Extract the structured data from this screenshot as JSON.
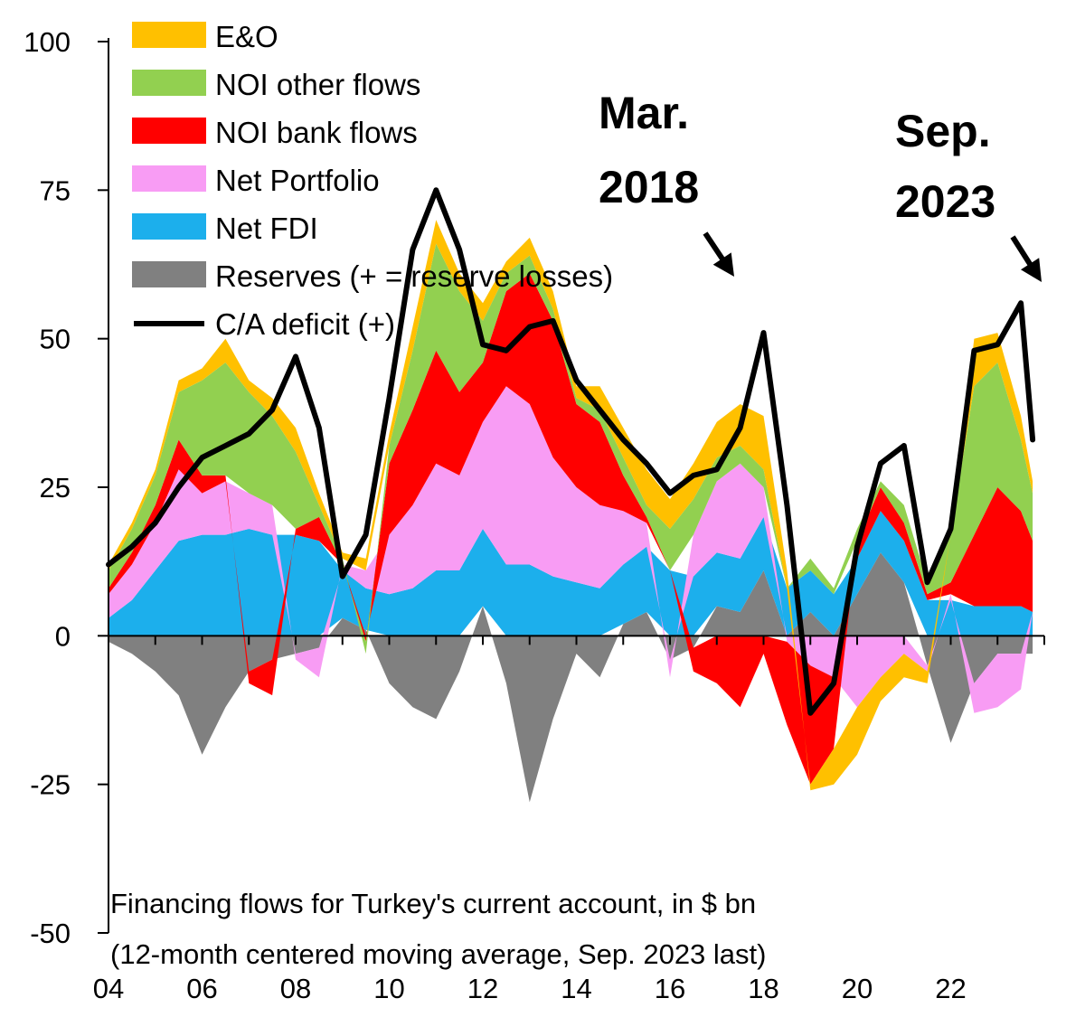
{
  "chart_data": {
    "type": "area",
    "stacked": true,
    "title": "",
    "caption": [
      "Financing flows for Turkey's current account, in $ bn",
      "(12-month centered moving average, Sep. 2023 last)"
    ],
    "xlabel": "",
    "ylabel": "",
    "x_range": [
      2004,
      2024
    ],
    "ylim": [
      -50,
      100
    ],
    "yticks": [
      "100",
      "75",
      "50",
      "25",
      "0",
      "-25",
      "-50"
    ],
    "ytick_values": [
      100,
      75,
      50,
      25,
      0,
      -25,
      -50
    ],
    "xticks": [
      "04",
      "06",
      "08",
      "10",
      "12",
      "14",
      "16",
      "18",
      "20",
      "22"
    ],
    "xtick_values": [
      2004,
      2006,
      2008,
      2010,
      2012,
      2014,
      2016,
      2018,
      2020,
      2022
    ],
    "legend_position": "top-left",
    "x": [
      2004.0,
      2004.5,
      2005.0,
      2005.5,
      2006.0,
      2006.5,
      2007.0,
      2007.5,
      2008.0,
      2008.5,
      2009.0,
      2009.5,
      2010.0,
      2010.5,
      2011.0,
      2011.5,
      2012.0,
      2012.5,
      2013.0,
      2013.5,
      2014.0,
      2014.5,
      2015.0,
      2015.5,
      2016.0,
      2016.5,
      2017.0,
      2017.5,
      2018.0,
      2018.5,
      2019.0,
      2019.5,
      2020.0,
      2020.5,
      2021.0,
      2021.5,
      2022.0,
      2022.5,
      2023.0,
      2023.5,
      2023.75
    ],
    "series": [
      {
        "name": "Reserves (+ = reserve losses)",
        "color": "#808080",
        "values": [
          -1,
          -3,
          -6,
          -10,
          -20,
          -12,
          -6,
          -4,
          -3,
          -2,
          3,
          1,
          -8,
          -12,
          -14,
          -6,
          5,
          -8,
          -28,
          -14,
          -3,
          -7,
          2,
          4,
          -4,
          -2,
          5,
          4,
          11,
          0,
          4,
          0,
          7,
          14,
          9,
          -5,
          -18,
          -8,
          -3,
          -3,
          -3
        ]
      },
      {
        "name": "Net FDI",
        "color": "#1CAFEC",
        "values": [
          3,
          6,
          11,
          16,
          17,
          17,
          18,
          17,
          17,
          16,
          8,
          7,
          7,
          8,
          11,
          11,
          13,
          12,
          12,
          10,
          9,
          8,
          10,
          11,
          11,
          10,
          9,
          9,
          9,
          8,
          7,
          7,
          6,
          7,
          7,
          6,
          6,
          5,
          5,
          5,
          4
        ]
      },
      {
        "name": "Net Portfolio",
        "color": "#F89CF4",
        "values": [
          4,
          6,
          8,
          12,
          7,
          9,
          6,
          5,
          -1,
          -5,
          1,
          3,
          10,
          14,
          18,
          16,
          18,
          30,
          27,
          20,
          16,
          14,
          9,
          4,
          -3,
          7,
          12,
          16,
          5,
          -1,
          -5,
          -7,
          -12,
          -7,
          -3,
          -1,
          1,
          -5,
          -9,
          -6,
          0
        ]
      },
      {
        "name": "NOI bank flows",
        "color": "#FF0000",
        "values": [
          1,
          2,
          3,
          5,
          3,
          1,
          -2,
          -6,
          1,
          4,
          0,
          -1,
          12,
          16,
          19,
          14,
          10,
          16,
          22,
          23,
          14,
          14,
          6,
          1,
          0,
          -4,
          -8,
          -12,
          -3,
          -14,
          -20,
          -12,
          3,
          4,
          3,
          1,
          2,
          12,
          20,
          16,
          12
        ]
      },
      {
        "name": "NOI other flows",
        "color": "#92D050",
        "values": [
          3,
          4,
          5,
          8,
          16,
          19,
          17,
          15,
          13,
          2,
          1,
          -2,
          3,
          10,
          18,
          17,
          7,
          3,
          3,
          2,
          1,
          2,
          3,
          2,
          7,
          6,
          4,
          3,
          3,
          0,
          2,
          1,
          2,
          1,
          3,
          2,
          8,
          25,
          21,
          12,
          8
        ]
      },
      {
        "name": "E&O",
        "color": "#FFC000",
        "values": [
          1,
          1,
          1,
          2,
          2,
          4,
          2,
          3,
          4,
          2,
          1,
          2,
          2,
          4,
          4,
          3,
          3,
          2,
          3,
          3,
          2,
          4,
          5,
          6,
          5,
          6,
          6,
          7,
          9,
          3,
          -1,
          -6,
          -8,
          -4,
          -4,
          -2,
          0,
          8,
          5,
          4,
          2
        ]
      }
    ],
    "line": {
      "name": "C/A deficit (+)",
      "color": "#000000",
      "values": [
        12,
        15,
        19,
        25,
        30,
        32,
        34,
        38,
        47,
        35,
        10,
        17,
        40,
        65,
        75,
        65,
        49,
        48,
        52,
        53,
        43,
        38,
        33,
        29,
        24,
        27,
        28,
        35,
        51,
        22,
        -13,
        -8,
        15,
        29,
        32,
        9,
        18,
        48,
        49,
        56,
        33
      ]
    },
    "legend": [
      {
        "label": "E&O",
        "color": "#FFC000",
        "kind": "box"
      },
      {
        "label": "NOI other flows",
        "color": "#92D050",
        "kind": "box"
      },
      {
        "label": "NOI bank flows",
        "color": "#FF0000",
        "kind": "box"
      },
      {
        "label": "Net Portfolio",
        "color": "#F89CF4",
        "kind": "box"
      },
      {
        "label": "Net FDI",
        "color": "#1CAFEC",
        "kind": "box"
      },
      {
        "label": "Reserves (+ = reserve losses)",
        "color": "#808080",
        "kind": "box"
      },
      {
        "label": "C/A deficit (+)",
        "color": "#000000",
        "kind": "line"
      }
    ],
    "annotations": [
      {
        "lines": [
          "Mar.",
          "2018"
        ],
        "target_x": 2018.0,
        "target_y": 51
      },
      {
        "lines": [
          "Sep.",
          "2023"
        ],
        "target_x": 2023.75,
        "target_y": 58
      }
    ]
  }
}
